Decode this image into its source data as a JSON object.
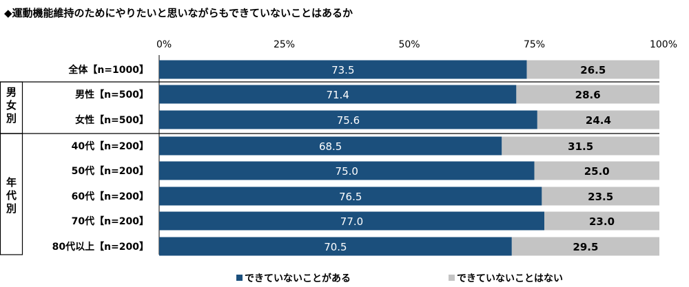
{
  "chart_data": {
    "type": "bar",
    "orientation": "horizontal",
    "stacked": true,
    "title": "◆運動機能維持のためにやりたいと思いながらもできていないことはあるか",
    "xlim": [
      0,
      100
    ],
    "ticks": [
      "0%",
      "25%",
      "50%",
      "75%",
      "100%"
    ],
    "categories": [
      "全体【n=1000】",
      "男性【n=500】",
      "女性【n=500】",
      "40代【n=200】",
      "50代【n=200】",
      "60代【n=200】",
      "70代【n=200】",
      "80代以上【n=200】"
    ],
    "groups": [
      {
        "label": "男女別",
        "chars": [
          "男",
          "女",
          "別"
        ]
      },
      {
        "label": "年代別",
        "chars": [
          "年",
          "代",
          "別"
        ]
      }
    ],
    "series": [
      {
        "name": "できていないことがある",
        "color": "#1b4f7c",
        "values": [
          73.5,
          71.4,
          75.6,
          68.5,
          75.0,
          76.5,
          77.0,
          70.5
        ]
      },
      {
        "name": "できていないことはない",
        "color": "#c4c4c4",
        "values": [
          26.5,
          28.6,
          24.4,
          31.5,
          25.0,
          23.5,
          23.0,
          29.5
        ]
      }
    ],
    "value_labels": [
      [
        "73.5",
        "71.4",
        "75.6",
        "68.5",
        "75.0",
        "76.5",
        "77.0",
        "70.5"
      ],
      [
        "26.5",
        "28.6",
        "24.4",
        "31.5",
        "25.0",
        "23.5",
        "23.0",
        "29.5"
      ]
    ],
    "legend_position": "bottom",
    "grid": false
  }
}
